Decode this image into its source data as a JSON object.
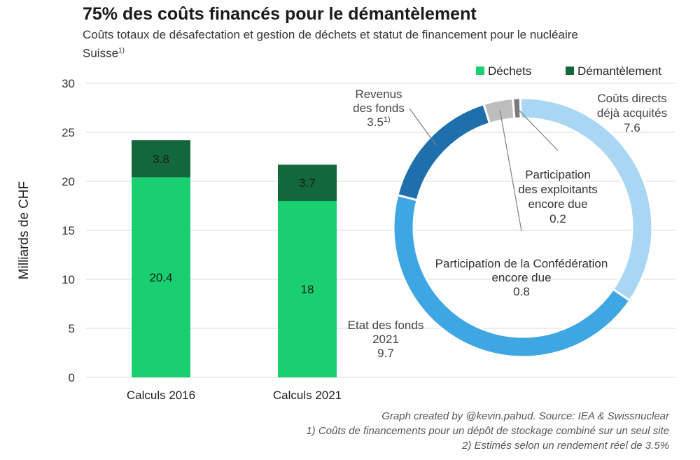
{
  "title": "75% des coûts financés pour le démantèlement",
  "subtitle": {
    "text": "Coûts totaux de désafectation et gestion de déchets et statut de financement pour le nucléaire Suisse",
    "sup": "1)"
  },
  "colors": {
    "dechets": "#19cf6f",
    "demantelement": "#12683a",
    "couts_directs": "#a9d7f3",
    "etat_fonds": "#3da6e3",
    "revenus": "#1e6fab",
    "participation_conf": "#bdbdbd",
    "participation_expl": "#7a7a7a",
    "grid": "#d9d9d9"
  },
  "chart_data": [
    {
      "type": "bar",
      "stacked": true,
      "categories": [
        "Calculs 2016",
        "Calculs 2021"
      ],
      "series": [
        {
          "name": "Déchets",
          "values": [
            20.4,
            18
          ],
          "labels": [
            "20.4",
            "18"
          ]
        },
        {
          "name": "Démantèlement",
          "values": [
            3.8,
            3.7
          ],
          "labels": [
            "3.8",
            "3.7"
          ]
        }
      ],
      "ylabel": "Milliards de CHF",
      "ylim": [
        0,
        30
      ],
      "yticks": [
        0,
        5,
        10,
        15,
        20,
        25,
        30
      ],
      "grid": true,
      "legend": "top-right"
    },
    {
      "type": "pie",
      "donut": true,
      "slices": [
        {
          "key": "couts_directs",
          "value": 7.6,
          "label_lines": [
            "Coûts directs",
            "déjà acquités",
            "7.6"
          ]
        },
        {
          "key": "etat_fonds",
          "value": 9.7,
          "label_lines": [
            "Etat des fonds",
            "2021",
            "9.7"
          ]
        },
        {
          "key": "revenus",
          "value": 3.5,
          "label_lines": [
            "Revenus",
            "des fonds",
            "3.5"
          ],
          "label_sup": "1)"
        },
        {
          "key": "participation_conf",
          "value": 0.8,
          "label_lines": [
            "Participation de la Confédération",
            "encore due",
            "0.8"
          ]
        },
        {
          "key": "participation_expl",
          "value": 0.2,
          "label_lines": [
            "Participation",
            "des exploitants",
            "encore due",
            "0.2"
          ]
        }
      ]
    }
  ],
  "footer": {
    "source": "Graph created by @kevin.pahud. Source: IEA & Swissnuclear",
    "note1": "1) Coûts de financements pour un dépôt de stockage combiné sur un seul site",
    "note2": "2) Estimés selon un rendement réel de 3.5%"
  }
}
